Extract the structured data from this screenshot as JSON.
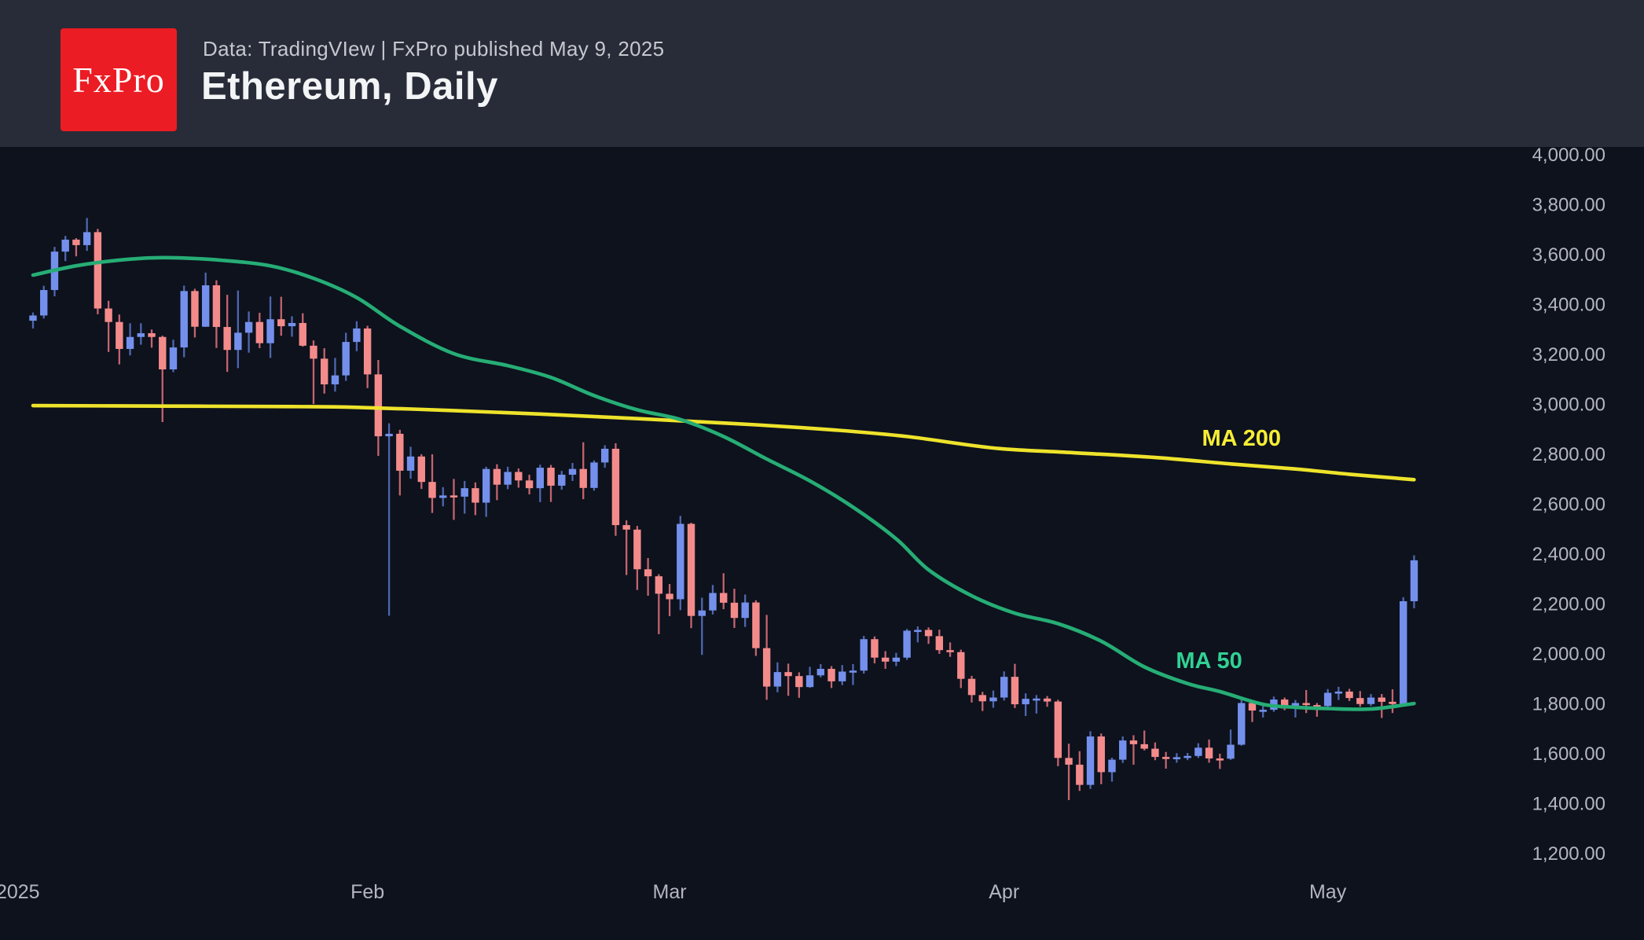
{
  "header": {
    "logo_text": "FxPro",
    "subtitle": "Data: TradingVIew | FxPro published May 9, 2025",
    "title": "Ethereum, Daily"
  },
  "colors": {
    "background": "#0d121d",
    "header_bg": "#282c38",
    "logo_bg": "#ec1c24",
    "logo_text": "#ffffff",
    "up_body": "#7490ec",
    "down_body": "#f48b8b",
    "up_wick": "#4f67b0",
    "down_wick": "#c4646e",
    "ma50_line": "#26ad75",
    "ma50_label": "#31d193",
    "ma200_line": "#eee32b",
    "ma200_label": "#f7ee35",
    "axis_text": "#b3b6bf"
  },
  "chart_data": {
    "type": "candlestick",
    "title": "Ethereum, Daily",
    "grid": false,
    "y_axis": {
      "min": 1200,
      "max": 4000,
      "step": 200,
      "ticks": [
        {
          "value": 4000,
          "label": "4,000.00"
        },
        {
          "value": 3800,
          "label": "3,800.00"
        },
        {
          "value": 3600,
          "label": "3,600.00"
        },
        {
          "value": 3400,
          "label": "3,400.00"
        },
        {
          "value": 3200,
          "label": "3,200.00"
        },
        {
          "value": 3000,
          "label": "3,000.00"
        },
        {
          "value": 2800,
          "label": "2,800.00"
        },
        {
          "value": 2600,
          "label": "2,600.00"
        },
        {
          "value": 2400,
          "label": "2,400.00"
        },
        {
          "value": 2200,
          "label": "2,200.00"
        },
        {
          "value": 2000,
          "label": "2,000.00"
        },
        {
          "value": 1800,
          "label": "1,800.00"
        },
        {
          "value": 1600,
          "label": "1,600.00"
        },
        {
          "value": 1400,
          "label": "1,400.00"
        },
        {
          "value": 1200,
          "label": "1,200.00"
        }
      ]
    },
    "x_labels": [
      {
        "index": -1.4,
        "label": "2025"
      },
      {
        "index": 31,
        "label": "Feb"
      },
      {
        "index": 59,
        "label": "Mar"
      },
      {
        "index": 90,
        "label": "Apr"
      },
      {
        "index": 120,
        "label": "May"
      }
    ],
    "ohlc_columns": [
      "date",
      "open",
      "high",
      "low",
      "close"
    ],
    "ohlc": [
      [
        "Jan 1",
        3332,
        3365,
        3301,
        3353
      ],
      [
        "Jan 2",
        3353,
        3472,
        3341,
        3455
      ],
      [
        "Jan 3",
        3455,
        3628,
        3430,
        3609
      ],
      [
        "Jan 4",
        3609,
        3672,
        3571,
        3657
      ],
      [
        "Jan 5",
        3657,
        3663,
        3590,
        3635
      ],
      [
        "Jan 6",
        3635,
        3744,
        3612,
        3687
      ],
      [
        "Jan 7",
        3687,
        3700,
        3358,
        3381
      ],
      [
        "Jan 8",
        3381,
        3412,
        3207,
        3327
      ],
      [
        "Jan 9",
        3327,
        3357,
        3157,
        3219
      ],
      [
        "Jan 10",
        3219,
        3322,
        3193,
        3267
      ],
      [
        "Jan 11",
        3267,
        3322,
        3236,
        3282
      ],
      [
        "Jan 12",
        3282,
        3297,
        3224,
        3267
      ],
      [
        "Jan 13",
        3267,
        3272,
        2926,
        3137
      ],
      [
        "Jan 14",
        3137,
        3256,
        3126,
        3225
      ],
      [
        "Jan 15",
        3225,
        3473,
        3186,
        3451
      ],
      [
        "Jan 16",
        3451,
        3460,
        3265,
        3308
      ],
      [
        "Jan 17",
        3308,
        3525,
        3307,
        3474
      ],
      [
        "Jan 18",
        3474,
        3494,
        3223,
        3307
      ],
      [
        "Jan 19",
        3307,
        3436,
        3127,
        3215
      ],
      [
        "Jan 20",
        3215,
        3453,
        3142,
        3284
      ],
      [
        "Jan 21",
        3284,
        3369,
        3204,
        3327
      ],
      [
        "Jan 22",
        3327,
        3364,
        3222,
        3242
      ],
      [
        "Jan 23",
        3242,
        3429,
        3183,
        3338
      ],
      [
        "Jan 24",
        3338,
        3428,
        3272,
        3310
      ],
      [
        "Jan 25",
        3310,
        3350,
        3268,
        3323
      ],
      [
        "Jan 26",
        3323,
        3362,
        3228,
        3232
      ],
      [
        "Jan 27",
        3232,
        3253,
        2998,
        3180
      ],
      [
        "Jan 28",
        3180,
        3222,
        3040,
        3077
      ],
      [
        "Jan 29",
        3077,
        3183,
        3048,
        3113
      ],
      [
        "Jan 30",
        3113,
        3284,
        3091,
        3247
      ],
      [
        "Jan 31",
        3247,
        3330,
        3210,
        3301
      ],
      [
        "Feb 1",
        3301,
        3312,
        3062,
        3117
      ],
      [
        "Feb 2",
        3117,
        3175,
        2790,
        2869
      ],
      [
        "Feb 3",
        2869,
        2921,
        2150,
        2879
      ],
      [
        "Feb 4",
        2879,
        2895,
        2632,
        2731
      ],
      [
        "Feb 5",
        2731,
        2827,
        2699,
        2788
      ],
      [
        "Feb 6",
        2788,
        2797,
        2658,
        2686
      ],
      [
        "Feb 7",
        2686,
        2797,
        2562,
        2622
      ],
      [
        "Feb 8",
        2622,
        2665,
        2588,
        2632
      ],
      [
        "Feb 9",
        2632,
        2698,
        2534,
        2627
      ],
      [
        "Feb 10",
        2627,
        2690,
        2559,
        2661
      ],
      [
        "Feb 11",
        2661,
        2684,
        2553,
        2603
      ],
      [
        "Feb 12",
        2603,
        2747,
        2546,
        2738
      ],
      [
        "Feb 13",
        2738,
        2757,
        2613,
        2675
      ],
      [
        "Feb 14",
        2675,
        2747,
        2657,
        2726
      ],
      [
        "Feb 15",
        2726,
        2740,
        2663,
        2692
      ],
      [
        "Feb 16",
        2692,
        2715,
        2636,
        2661
      ],
      [
        "Feb 17",
        2661,
        2755,
        2605,
        2743
      ],
      [
        "Feb 18",
        2743,
        2754,
        2606,
        2671
      ],
      [
        "Feb 19",
        2671,
        2730,
        2655,
        2715
      ],
      [
        "Feb 20",
        2715,
        2762,
        2690,
        2738
      ],
      [
        "Feb 21",
        2738,
        2845,
        2617,
        2662
      ],
      [
        "Feb 22",
        2662,
        2772,
        2651,
        2764
      ],
      [
        "Feb 23",
        2764,
        2833,
        2743,
        2819
      ],
      [
        "Feb 24",
        2819,
        2841,
        2470,
        2513
      ],
      [
        "Feb 25",
        2513,
        2532,
        2313,
        2495
      ],
      [
        "Feb 26",
        2495,
        2510,
        2253,
        2336
      ],
      [
        "Feb 27",
        2336,
        2381,
        2230,
        2308
      ],
      [
        "Feb 28",
        2308,
        2316,
        2076,
        2238
      ],
      [
        "Mar 1",
        2238,
        2277,
        2148,
        2216
      ],
      [
        "Mar 2",
        2216,
        2550,
        2172,
        2518
      ],
      [
        "Mar 3",
        2518,
        2523,
        2100,
        2149
      ],
      [
        "Mar 4",
        2149,
        2222,
        1993,
        2171
      ],
      [
        "Mar 5",
        2171,
        2273,
        2155,
        2241
      ],
      [
        "Mar 6",
        2241,
        2320,
        2176,
        2202
      ],
      [
        "Mar 7",
        2202,
        2258,
        2101,
        2141
      ],
      [
        "Mar 8",
        2141,
        2235,
        2105,
        2203
      ],
      [
        "Mar 9",
        2203,
        2212,
        1989,
        2020
      ],
      [
        "Mar 10",
        2020,
        2153,
        1813,
        1866
      ],
      [
        "Mar 11",
        1866,
        1963,
        1843,
        1924
      ],
      [
        "Mar 12",
        1924,
        1958,
        1829,
        1908
      ],
      [
        "Mar 13",
        1908,
        1923,
        1821,
        1864
      ],
      [
        "Mar 14",
        1864,
        1945,
        1861,
        1911
      ],
      [
        "Mar 15",
        1911,
        1956,
        1903,
        1937
      ],
      [
        "Mar 16",
        1937,
        1948,
        1860,
        1887
      ],
      [
        "Mar 17",
        1887,
        1952,
        1872,
        1926
      ],
      [
        "Mar 18",
        1926,
        1956,
        1872,
        1930
      ],
      [
        "Mar 19",
        1930,
        2069,
        1918,
        2056
      ],
      [
        "Mar 20",
        2056,
        2067,
        1959,
        1982
      ],
      [
        "Mar 21",
        1982,
        2008,
        1937,
        1966
      ],
      [
        "Mar 22",
        1966,
        2001,
        1948,
        1982
      ],
      [
        "Mar 23",
        1982,
        2097,
        1973,
        2090
      ],
      [
        "Mar 24",
        2090,
        2107,
        2043,
        2093
      ],
      [
        "Mar 25",
        2093,
        2103,
        2037,
        2068
      ],
      [
        "Mar 26",
        2068,
        2094,
        1997,
        2012
      ],
      [
        "Mar 27",
        2012,
        2043,
        1985,
        2004
      ],
      [
        "Mar 28",
        2004,
        2014,
        1860,
        1897
      ],
      [
        "Mar 29",
        1897,
        1909,
        1802,
        1832
      ],
      [
        "Mar 30",
        1832,
        1845,
        1768,
        1807
      ],
      [
        "Mar 31",
        1807,
        1850,
        1781,
        1822
      ],
      [
        "Apr 1",
        1822,
        1927,
        1810,
        1905
      ],
      [
        "Apr 2",
        1905,
        1957,
        1780,
        1795
      ],
      [
        "Apr 3",
        1795,
        1839,
        1748,
        1817
      ],
      [
        "Apr 4",
        1817,
        1832,
        1758,
        1818
      ],
      [
        "Apr 5",
        1818,
        1828,
        1785,
        1806
      ],
      [
        "Apr 6",
        1806,
        1813,
        1547,
        1580
      ],
      [
        "Apr 7",
        1580,
        1637,
        1411,
        1553
      ],
      [
        "Apr 8",
        1553,
        1607,
        1448,
        1472
      ],
      [
        "Apr 9",
        1472,
        1687,
        1456,
        1666
      ],
      [
        "Apr 10",
        1666,
        1678,
        1475,
        1523
      ],
      [
        "Apr 11",
        1523,
        1581,
        1485,
        1573
      ],
      [
        "Apr 12",
        1573,
        1666,
        1560,
        1650
      ],
      [
        "Apr 13",
        1650,
        1671,
        1553,
        1635
      ],
      [
        "Apr 14",
        1635,
        1690,
        1610,
        1617
      ],
      [
        "Apr 15",
        1617,
        1642,
        1571,
        1584
      ],
      [
        "Apr 16",
        1584,
        1604,
        1537,
        1577
      ],
      [
        "Apr 17",
        1577,
        1599,
        1561,
        1583
      ],
      [
        "Apr 18",
        1583,
        1600,
        1571,
        1588
      ],
      [
        "Apr 19",
        1588,
        1639,
        1580,
        1621
      ],
      [
        "Apr 20",
        1621,
        1654,
        1561,
        1578
      ],
      [
        "Apr 21",
        1578,
        1597,
        1536,
        1577
      ],
      [
        "Apr 22",
        1577,
        1694,
        1572,
        1633
      ],
      [
        "Apr 23",
        1633,
        1815,
        1629,
        1800
      ],
      [
        "Apr 24",
        1800,
        1812,
        1724,
        1770
      ],
      [
        "Apr 25",
        1770,
        1798,
        1742,
        1773
      ],
      [
        "Apr 26",
        1773,
        1826,
        1765,
        1814
      ],
      [
        "Apr 27",
        1814,
        1822,
        1771,
        1778
      ],
      [
        "Apr 28",
        1778,
        1812,
        1742,
        1800
      ],
      [
        "Apr 29",
        1800,
        1852,
        1760,
        1792
      ],
      [
        "Apr 30",
        1792,
        1800,
        1745,
        1788
      ],
      [
        "May 1",
        1788,
        1856,
        1771,
        1841
      ],
      [
        "May 2",
        1841,
        1865,
        1812,
        1846
      ],
      [
        "May 3",
        1846,
        1857,
        1808,
        1820
      ],
      [
        "May 4",
        1820,
        1848,
        1785,
        1796
      ],
      [
        "May 5",
        1796,
        1836,
        1788,
        1822
      ],
      [
        "May 6",
        1822,
        1836,
        1740,
        1805
      ],
      [
        "May 7",
        1805,
        1855,
        1760,
        1796
      ],
      [
        "May 8",
        1796,
        2224,
        1790,
        2208
      ],
      [
        "May 9",
        2208,
        2392,
        2180,
        2372
      ]
    ],
    "ma50": {
      "label": "MA 50",
      "label_at": {
        "index": 109,
        "price": 1972
      },
      "points": [
        [
          0,
          3515
        ],
        [
          4,
          3552
        ],
        [
          8,
          3575
        ],
        [
          12,
          3585
        ],
        [
          17,
          3576
        ],
        [
          22,
          3552
        ],
        [
          26,
          3502
        ],
        [
          30,
          3425
        ],
        [
          34,
          3310
        ],
        [
          39,
          3200
        ],
        [
          44,
          3152
        ],
        [
          48,
          3105
        ],
        [
          52,
          3032
        ],
        [
          56,
          2975
        ],
        [
          60,
          2936
        ],
        [
          64,
          2868
        ],
        [
          68,
          2778
        ],
        [
          72,
          2690
        ],
        [
          76,
          2585
        ],
        [
          80,
          2458
        ],
        [
          83,
          2334
        ],
        [
          87,
          2230
        ],
        [
          91,
          2160
        ],
        [
          95,
          2118
        ],
        [
          99,
          2048
        ],
        [
          103,
          1945
        ],
        [
          107,
          1878
        ],
        [
          110,
          1846
        ],
        [
          114,
          1795
        ],
        [
          117,
          1783
        ],
        [
          120,
          1778
        ],
        [
          124,
          1776
        ],
        [
          128,
          1798
        ]
      ]
    },
    "ma200": {
      "label": "MA 200",
      "label_at": {
        "index": 112,
        "price": 2863
      },
      "points": [
        [
          0,
          2992
        ],
        [
          12,
          2990
        ],
        [
          24,
          2988
        ],
        [
          30,
          2985
        ],
        [
          39,
          2972
        ],
        [
          47,
          2958
        ],
        [
          54,
          2944
        ],
        [
          60,
          2931
        ],
        [
          67,
          2915
        ],
        [
          74,
          2895
        ],
        [
          81,
          2868
        ],
        [
          89,
          2822
        ],
        [
          96,
          2804
        ],
        [
          104,
          2784
        ],
        [
          111,
          2758
        ],
        [
          117,
          2738
        ],
        [
          122,
          2717
        ],
        [
          128,
          2695
        ]
      ]
    }
  }
}
